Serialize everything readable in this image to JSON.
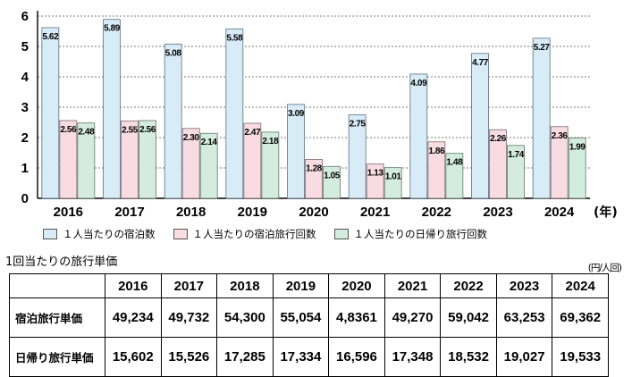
{
  "chart_data": {
    "type": "bar",
    "categories": [
      "2016",
      "2017",
      "2018",
      "2019",
      "2020",
      "2021",
      "2022",
      "2023",
      "2024"
    ],
    "x_unit": "(年)",
    "ylim": [
      0,
      6
    ],
    "yticks": [
      "0",
      "1",
      "2",
      "3",
      "4",
      "5",
      "6"
    ],
    "grid": "horizontal-dashed",
    "legend_position": "bottom",
    "series": [
      {
        "name": "１人当たりの宿泊数",
        "color": "#d8ecf8",
        "values": [
          5.62,
          5.89,
          5.08,
          5.58,
          3.09,
          2.75,
          4.09,
          4.77,
          5.27
        ],
        "labels": [
          "5.62",
          "5.89",
          "5.08",
          "5.58",
          "3.09",
          "2.75",
          "4.09",
          "4.77",
          "5.27"
        ]
      },
      {
        "name": "１人当たりの宿泊旅行回数",
        "color": "#f8dce2",
        "values": [
          2.56,
          2.55,
          2.3,
          2.47,
          1.28,
          1.13,
          1.86,
          2.26,
          2.36
        ],
        "labels": [
          "2.56",
          "2.55",
          "2.30",
          "2.47",
          "1.28",
          "1.13",
          "1.86",
          "2.26",
          "2.36"
        ]
      },
      {
        "name": "１人当たりの日帰り旅行回数",
        "color": "#d4ecde",
        "values": [
          2.48,
          2.56,
          2.14,
          2.18,
          1.05,
          1.01,
          1.48,
          1.74,
          1.99
        ],
        "labels": [
          "2.48",
          "2.56",
          "2.14",
          "2.18",
          "1.05",
          "1.01",
          "1.48",
          "1.74",
          "1.99"
        ]
      }
    ]
  },
  "table": {
    "title": "1回当たりの旅行単価",
    "unit": "(円/人回)",
    "years": [
      "2016",
      "2017",
      "2018",
      "2019",
      "2020",
      "2021",
      "2022",
      "2023",
      "2024"
    ],
    "rows": [
      {
        "label": "宿泊旅行単価",
        "values": [
          "49,234",
          "49,732",
          "54,300",
          "55,054",
          "4,8361",
          "49,270",
          "59,042",
          "63,253",
          "69,362"
        ]
      },
      {
        "label": "日帰り旅行単価",
        "values": [
          "15,602",
          "15,526",
          "17,285",
          "17,334",
          "16,596",
          "17,348",
          "18,532",
          "19,027",
          "19,533"
        ]
      }
    ]
  }
}
